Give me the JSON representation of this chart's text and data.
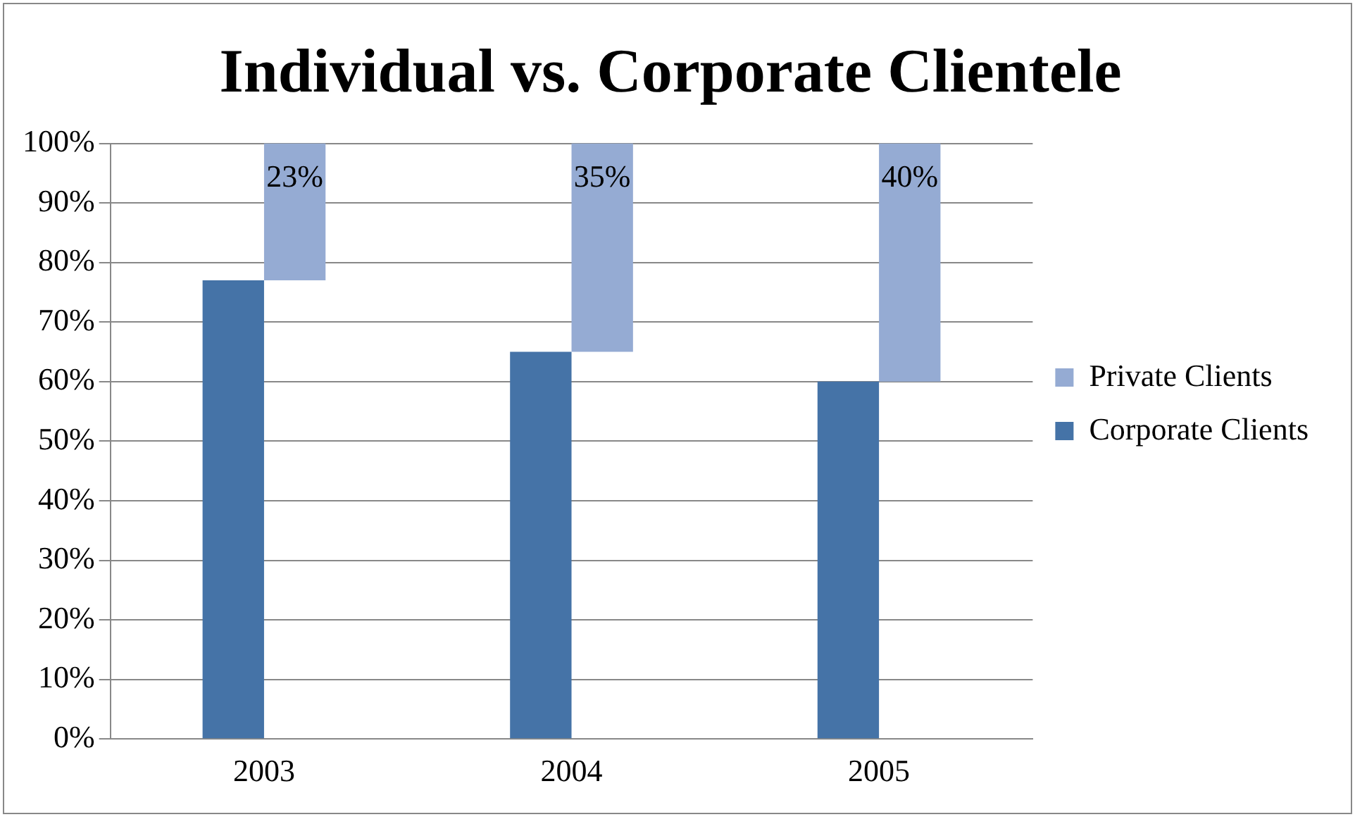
{
  "chart_data": {
    "type": "bar",
    "title": "Individual vs. Corporate Clientele",
    "categories": [
      "2003",
      "2004",
      "2005"
    ],
    "series": [
      {
        "name": "Corporate Clients",
        "color": "#4573a7",
        "values": [
          77,
          65,
          60
        ]
      },
      {
        "name": "Private Clients",
        "color": "#95abd3",
        "values": [
          23,
          35,
          40
        ],
        "base": [
          77,
          65,
          60
        ],
        "value_labels": [
          "23%",
          "35%",
          "40%"
        ]
      }
    ],
    "ylim": [
      0,
      100
    ],
    "yticks": [
      {
        "value": 0,
        "label": "0%"
      },
      {
        "value": 10,
        "label": "10%"
      },
      {
        "value": 20,
        "label": "20%"
      },
      {
        "value": 30,
        "label": "30%"
      },
      {
        "value": 40,
        "label": "40%"
      },
      {
        "value": 50,
        "label": "50%"
      },
      {
        "value": 60,
        "label": "60%"
      },
      {
        "value": 70,
        "label": "70%"
      },
      {
        "value": 80,
        "label": "80%"
      },
      {
        "value": 90,
        "label": "90%"
      },
      {
        "value": 100,
        "label": "100%"
      }
    ],
    "grid": "y",
    "legend": "right"
  }
}
